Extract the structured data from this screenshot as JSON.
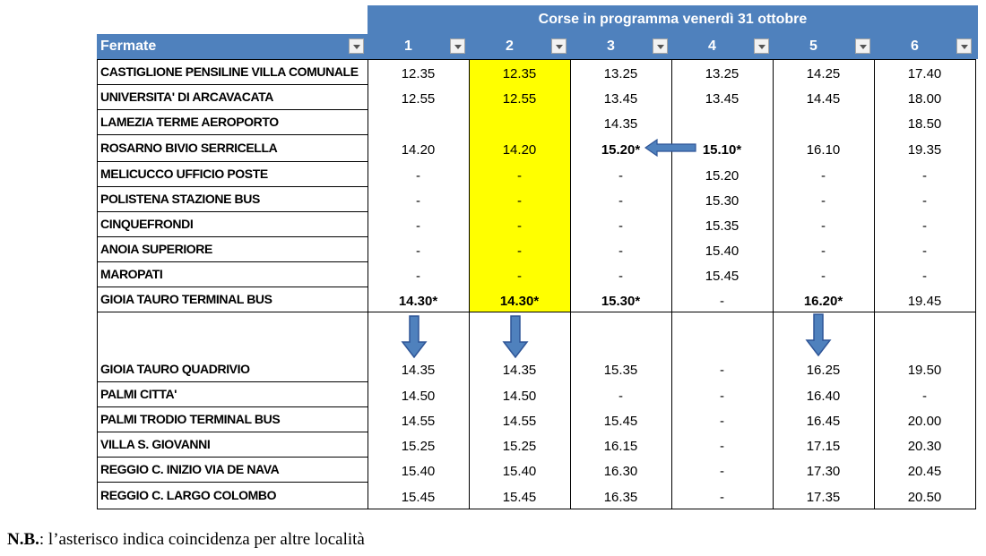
{
  "header": {
    "title": "Corse in programma venerdì 31 ottobre",
    "stops_label": "Fermate",
    "runs": [
      "1",
      "2",
      "3",
      "4",
      "5",
      "6"
    ]
  },
  "colors": {
    "header_bg": "#4f81bd",
    "highlight": "#ffff00",
    "arrow": "#4f81bd"
  },
  "icons": {
    "filter": "dropdown-filter-icon",
    "arrow": "arrow-icon"
  },
  "rows": [
    {
      "stop": "CASTIGLIONE PENSILINE VILLA COMUNALE",
      "times": [
        "12.35",
        "12.35",
        "13.25",
        "13.25",
        "14.25",
        "17.40"
      ]
    },
    {
      "stop": "UNIVERSITA' DI ARCAVACATA",
      "times": [
        "12.55",
        "12.55",
        "13.45",
        "13.45",
        "14.45",
        "18.00"
      ]
    },
    {
      "stop": "LAMEZIA TERME AEROPORTO",
      "times": [
        "",
        "",
        "14.35",
        "",
        "",
        "18.50"
      ]
    },
    {
      "stop": "ROSARNO BIVIO SERRICELLA",
      "times": [
        "14.20",
        "14.20",
        "15.20*",
        "15.10*",
        "16.10",
        "19.35"
      ]
    },
    {
      "stop": "MELICUCCO UFFICIO POSTE",
      "times": [
        "-",
        "-",
        "-",
        "15.20",
        "-",
        "-"
      ]
    },
    {
      "stop": "POLISTENA STAZIONE BUS",
      "times": [
        "-",
        "-",
        "-",
        "15.30",
        "-",
        "-"
      ]
    },
    {
      "stop": "CINQUEFRONDI",
      "times": [
        "-",
        "-",
        "-",
        "15.35",
        "-",
        "-"
      ]
    },
    {
      "stop": "ANOIA SUPERIORE",
      "times": [
        "-",
        "-",
        "-",
        "15.40",
        "-",
        "-"
      ]
    },
    {
      "stop": "MAROPATI",
      "times": [
        "-",
        "-",
        "-",
        "15.45",
        "-",
        "-"
      ]
    },
    {
      "stop": "GIOIA TAURO TERMINAL BUS",
      "times": [
        "14.30*",
        "14.30*",
        "15.30*",
        "-",
        "16.20*",
        "19.45"
      ]
    },
    {
      "stop": "GIOIA TAURO QUADRIVIO",
      "times": [
        "14.35",
        "14.35",
        "15.35",
        "-",
        "16.25",
        "19.50"
      ]
    },
    {
      "stop": "PALMI CITTA'",
      "times": [
        "14.50",
        "14.50",
        "-",
        "-",
        "16.40",
        "-"
      ]
    },
    {
      "stop": "PALMI TRODIO TERMINAL BUS",
      "times": [
        "14.55",
        "14.55",
        "15.45",
        "-",
        "16.45",
        "20.00"
      ]
    },
    {
      "stop": "VILLA S. GIOVANNI",
      "times": [
        "15.25",
        "15.25",
        "16.15",
        "-",
        "17.15",
        "20.30"
      ]
    },
    {
      "stop": "REGGIO C. INIZIO VIA DE NAVA",
      "times": [
        "15.40",
        "15.40",
        "16.30",
        "-",
        "17.30",
        "20.45"
      ]
    },
    {
      "stop": "REGGIO C. LARGO COLOMBO",
      "times": [
        "15.45",
        "15.45",
        "16.35",
        "-",
        "17.35",
        "20.50"
      ]
    }
  ],
  "note": {
    "label": "N.B.",
    "text": ": l’asterisco indica coincidenza per altre località"
  }
}
